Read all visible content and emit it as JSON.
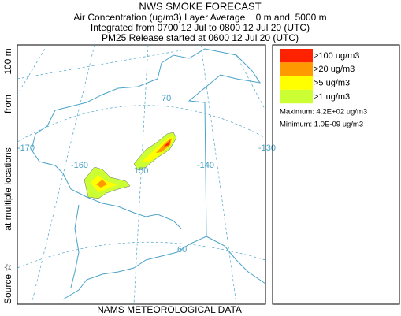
{
  "header": {
    "title": "NWS SMOKE FORECAST",
    "lines": [
      "Air Concentration (ug/m3) Layer Average    0 m and  5000 m",
      "Integrated from 0700 12 Jul to 0800 12 Jul 20 (UTC)",
      "PM25 Release started at 0600 12 Jul 20 (UTC)"
    ]
  },
  "side_label": [
    "Source ☆",
    "at multiple locations",
    "from",
    "100 m"
  ],
  "footer": "NAMS METEOROLOGICAL DATA",
  "map": {
    "labels": [
      "-170",
      "-160",
      "150",
      "-140",
      "-130",
      "70",
      "60"
    ]
  },
  "legend": {
    "items": [
      {
        "label": ">100 ug/m3",
        "color": "#ff2200"
      },
      {
        "label": ">20 ug/m3",
        "color": "#ff9900"
      },
      {
        "label": ">5 ug/m3",
        "color": "#ffff00"
      },
      {
        "label": ">1 ug/m3",
        "color": "#ccff33"
      }
    ],
    "maximum": "Maximum: 4.2E+02 ug/m3",
    "minimum": "Minimum: 1.0E-09 ug/m3"
  }
}
